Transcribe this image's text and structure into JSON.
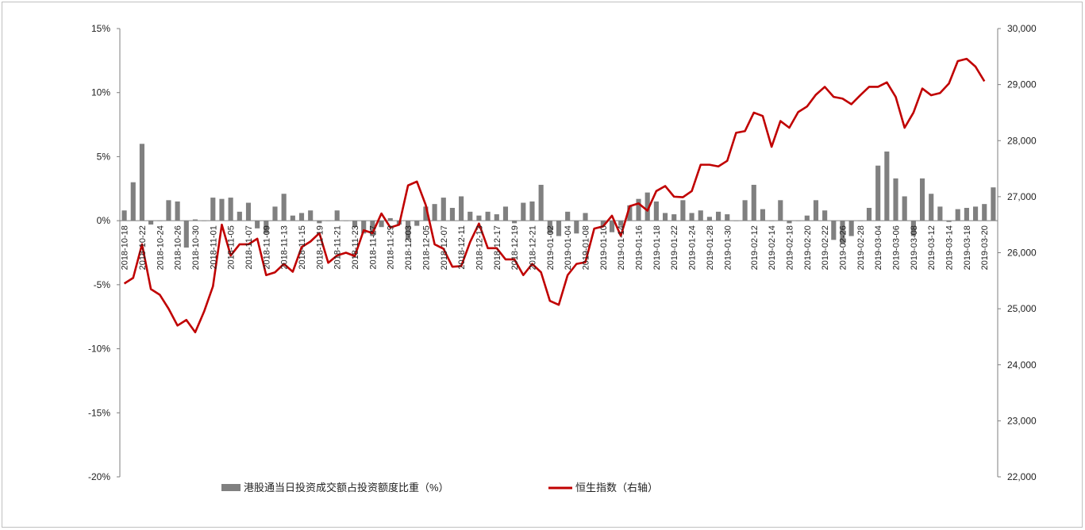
{
  "chart_data": {
    "type": "bar+line",
    "x": [
      "2018-10-18",
      "2018-10-19",
      "2018-10-22",
      "2018-10-23",
      "2018-10-24",
      "2018-10-25",
      "2018-10-26",
      "2018-10-29",
      "2018-10-30",
      "2018-10-31",
      "2018-11-01",
      "2018-11-02",
      "2018-11-05",
      "2018-11-06",
      "2018-11-07",
      "2018-11-08",
      "2018-11-09",
      "2018-11-12",
      "2018-11-13",
      "2018-11-14",
      "2018-11-15",
      "2018-11-16",
      "2018-11-19",
      "2018-11-20",
      "2018-11-21",
      "2018-11-22",
      "2018-11-23",
      "2018-11-26",
      "2018-11-27",
      "2018-11-28",
      "2018-11-29",
      "2018-11-30",
      "2018-12-03",
      "2018-12-04",
      "2018-12-05",
      "2018-12-06",
      "2018-12-07",
      "2018-12-10",
      "2018-12-11",
      "2018-12-12",
      "2018-12-13",
      "2018-12-14",
      "2018-12-17",
      "2018-12-18",
      "2018-12-19",
      "2018-12-20",
      "2018-12-21",
      "2018-12-24",
      "2019-01-02",
      "2019-01-03",
      "2019-01-04",
      "2019-01-07",
      "2019-01-08",
      "2019-01-09",
      "2019-01-10",
      "2019-01-11",
      "2019-01-14",
      "2019-01-15",
      "2019-01-16",
      "2019-01-17",
      "2019-01-18",
      "2019-01-21",
      "2019-01-22",
      "2019-01-23",
      "2019-01-24",
      "2019-01-25",
      "2019-01-28",
      "2019-01-29",
      "2019-01-30",
      "2019-01-31",
      "2019-02-11",
      "2019-02-12",
      "2019-02-13",
      "2019-02-14",
      "2019-02-15",
      "2019-02-18",
      "2019-02-19",
      "2019-02-20",
      "2019-02-21",
      "2019-02-22",
      "2019-02-25",
      "2019-02-26",
      "2019-02-27",
      "2019-02-28",
      "2019-03-01",
      "2019-03-04",
      "2019-03-05",
      "2019-03-06",
      "2019-03-07",
      "2019-03-08",
      "2019-03-11",
      "2019-03-12",
      "2019-03-13",
      "2019-03-14",
      "2019-03-15",
      "2019-03-18",
      "2019-03-19",
      "2019-03-20",
      "2019-03-21"
    ],
    "x_tick_labels": [
      "2018-10-18",
      "2018-10-22",
      "2018-10-24",
      "2018-10-26",
      "2018-10-30",
      "2018-11-01",
      "2018-11-05",
      "2018-11-07",
      "2018-11-09",
      "2018-11-13",
      "2018-11-15",
      "2018-11-19",
      "2018-11-21",
      "2018-11-23",
      "2018-11-27",
      "2018-11-29",
      "2018-12-03",
      "2018-12-05",
      "2018-12-07",
      "2018-12-11",
      "2018-12-13",
      "2018-12-17",
      "2018-12-19",
      "2018-12-21",
      "2019-01-02",
      "2019-01-04",
      "2019-01-08",
      "2019-01-10",
      "2019-01-14",
      "2019-01-16",
      "2019-01-18",
      "2019-01-22",
      "2019-01-24",
      "2019-01-28",
      "2019-01-30",
      "2019-02-12",
      "2019-02-14",
      "2019-02-18",
      "2019-02-20",
      "2019-02-22",
      "2019-02-26",
      "2019-02-28",
      "2019-03-04",
      "2019-03-06",
      "2019-03-08",
      "2019-03-12",
      "2019-03-14",
      "2019-03-18",
      "2019-03-20"
    ],
    "series": [
      {
        "name": "港股通当日投资成交额占投资额度比重（%）",
        "type": "bar",
        "axis": "left",
        "color": "#808080",
        "values": [
          0.8,
          3.0,
          6.0,
          -0.3,
          0.0,
          1.6,
          1.5,
          -2.1,
          0.1,
          0.0,
          1.8,
          1.7,
          1.8,
          0.7,
          1.4,
          -0.6,
          -1.0,
          1.1,
          2.1,
          0.4,
          0.6,
          0.8,
          -0.2,
          0.0,
          0.8,
          0.0,
          -0.5,
          -1.0,
          -1.2,
          -0.5,
          0.2,
          -0.3,
          -1.5,
          -0.4,
          1.1,
          1.3,
          1.8,
          1.0,
          1.9,
          0.7,
          0.4,
          0.7,
          0.5,
          1.1,
          -0.2,
          1.4,
          1.5,
          2.8,
          -1.0,
          -1.2,
          0.7,
          -1.0,
          0.6,
          0.0,
          -0.4,
          -0.9,
          -0.4,
          1.2,
          1.7,
          2.2,
          1.5,
          0.6,
          0.5,
          1.6,
          0.6,
          0.8,
          0.3,
          0.7,
          0.5,
          0.0,
          1.6,
          2.8,
          0.9,
          0.0,
          1.6,
          -0.2,
          0.0,
          0.4,
          1.6,
          0.8,
          -1.5,
          -1.8,
          -1.2,
          0.0,
          1.0,
          4.3,
          5.4,
          3.3,
          1.9,
          -1.2,
          3.3,
          2.1,
          1.1,
          -0.1,
          0.9,
          1.0,
          1.1,
          1.3,
          2.6
        ]
      },
      {
        "name": "恒生指数（右轴）",
        "type": "line",
        "axis": "right",
        "color": "#c00000",
        "values": [
          25450,
          25550,
          26150,
          25350,
          25250,
          25000,
          24700,
          24800,
          24580,
          24950,
          25400,
          26500,
          25950,
          26150,
          26150,
          26250,
          25600,
          25650,
          25800,
          25660,
          26100,
          26200,
          26350,
          25820,
          25950,
          26000,
          25940,
          26400,
          26350,
          26700,
          26450,
          26500,
          27200,
          27270,
          26850,
          26150,
          26070,
          25750,
          25760,
          26190,
          26520,
          26080,
          26080,
          25880,
          25880,
          25600,
          25800,
          25650,
          25140,
          25070,
          25600,
          25800,
          25830,
          26430,
          26470,
          26660,
          26300,
          26830,
          26880,
          26750,
          27100,
          27190,
          27000,
          26990,
          27100,
          27570,
          27570,
          27540,
          27640,
          28140,
          28170,
          28500,
          28440,
          27890,
          28350,
          28230,
          28510,
          28610,
          28820,
          28960,
          28780,
          28750,
          28650,
          28810,
          28960,
          28960,
          29040,
          28780,
          28230,
          28500,
          28930,
          28810,
          28850,
          29020,
          29420,
          29460,
          29320,
          29060,
          null
        ]
      }
    ],
    "y_left": {
      "min": -20,
      "max": 15,
      "step": 5,
      "tick_labels": [
        "15%",
        "10%",
        "5%",
        "0%",
        "-5%",
        "-10%",
        "-15%",
        "-20%"
      ]
    },
    "y_right": {
      "min": 22000,
      "max": 30000,
      "step": 1000,
      "tick_labels": [
        "30,000",
        "29,000",
        "28,000",
        "27,000",
        "26,000",
        "25,000",
        "24,000",
        "23,000",
        "22,000"
      ]
    },
    "legend_position": "bottom",
    "grid": false
  },
  "legend": {
    "bar_label": "港股通当日投资成交额占投资额度比重（%）",
    "line_label": "恒生指数（右轴）"
  }
}
